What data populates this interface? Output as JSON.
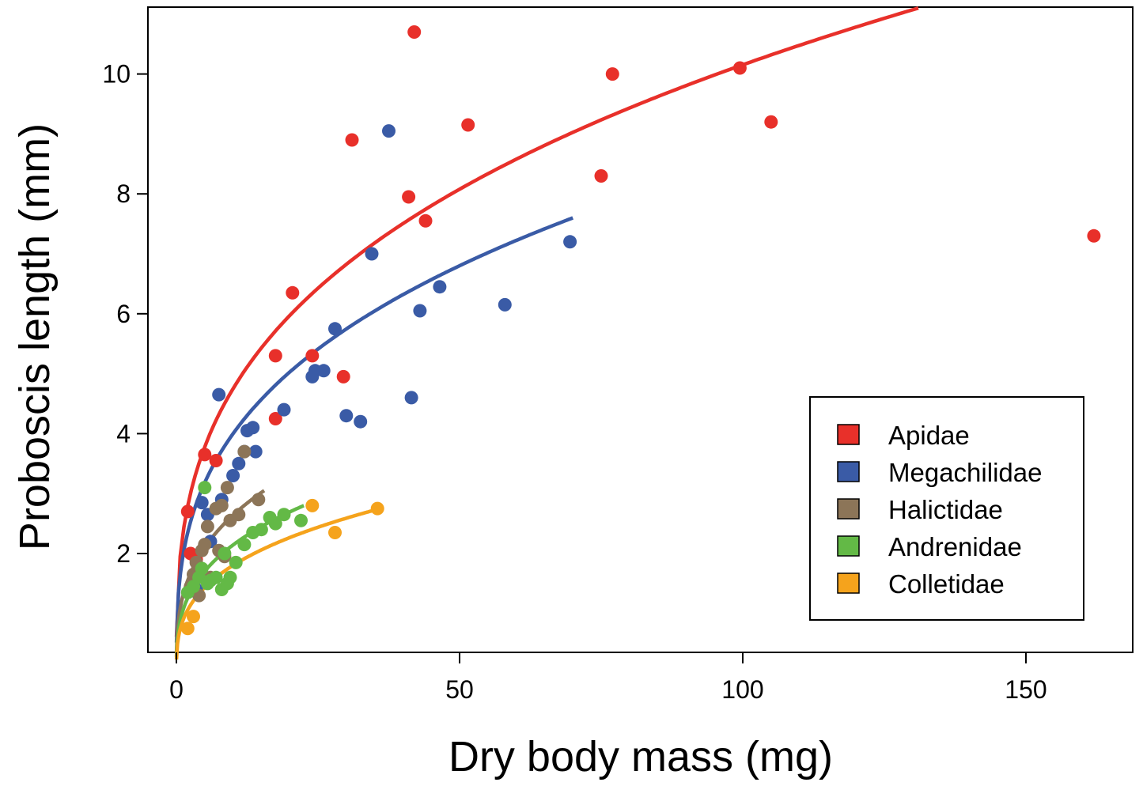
{
  "chart_data": {
    "type": "scatter",
    "title": "",
    "xlabel": "Dry body mass (mg)",
    "ylabel": "Proboscis length (mm)",
    "xlim": [
      -5,
      168
    ],
    "ylim": [
      0.4,
      11.1
    ],
    "xticks": [
      0,
      50,
      100,
      150
    ],
    "yticks": [
      2,
      4,
      6,
      8,
      10
    ],
    "grid": false,
    "legend_position": "bottom-right",
    "fit": "power curve per family",
    "series": [
      {
        "name": "Apidae",
        "color": "#e8302a",
        "fit_x_max": 131,
        "fit_at_max": 11.1,
        "points": [
          [
            2,
            2.7
          ],
          [
            2.5,
            2.0
          ],
          [
            3.5,
            1.9
          ],
          [
            5,
            3.65
          ],
          [
            7,
            3.55
          ],
          [
            17.5,
            5.3
          ],
          [
            17.5,
            4.25
          ],
          [
            20.5,
            6.35
          ],
          [
            24,
            5.3
          ],
          [
            29.5,
            4.95
          ],
          [
            31,
            8.9
          ],
          [
            41,
            7.95
          ],
          [
            42,
            10.7
          ],
          [
            44,
            7.55
          ],
          [
            51.5,
            9.15
          ],
          [
            75,
            8.3
          ],
          [
            77,
            10.0
          ],
          [
            99.5,
            10.1
          ],
          [
            105,
            9.2
          ],
          [
            162,
            7.3
          ]
        ]
      },
      {
        "name": "Megachilidae",
        "color": "#3a5ba6",
        "fit_x_max": 70,
        "fit_at_max": 7.6,
        "points": [
          [
            3.5,
            1.4
          ],
          [
            4.5,
            2.85
          ],
          [
            5.5,
            2.65
          ],
          [
            6,
            2.2
          ],
          [
            7.5,
            4.65
          ],
          [
            8,
            2.9
          ],
          [
            10,
            3.3
          ],
          [
            11,
            3.5
          ],
          [
            12,
            3.7
          ],
          [
            12.5,
            4.05
          ],
          [
            13.5,
            4.1
          ],
          [
            14,
            3.7
          ],
          [
            19,
            4.4
          ],
          [
            24,
            4.95
          ],
          [
            24.5,
            5.05
          ],
          [
            26,
            5.05
          ],
          [
            28,
            5.75
          ],
          [
            30,
            4.3
          ],
          [
            32.5,
            4.2
          ],
          [
            34.5,
            7.0
          ],
          [
            37.5,
            9.05
          ],
          [
            41.5,
            4.6
          ],
          [
            43,
            6.05
          ],
          [
            46.5,
            6.45
          ],
          [
            58,
            6.15
          ],
          [
            69.5,
            7.2
          ]
        ]
      },
      {
        "name": "Halictidae",
        "color": "#8c7558",
        "fit_x_max": 15.5,
        "fit_at_max": 3.05,
        "points": [
          [
            2.5,
            1.45
          ],
          [
            3,
            1.65
          ],
          [
            3.5,
            1.85
          ],
          [
            4,
            1.3
          ],
          [
            4.5,
            2.05
          ],
          [
            5,
            2.15
          ],
          [
            5.5,
            2.45
          ],
          [
            6,
            1.6
          ],
          [
            7,
            2.75
          ],
          [
            7.5,
            2.05
          ],
          [
            8,
            2.8
          ],
          [
            8.5,
            1.95
          ],
          [
            9,
            3.1
          ],
          [
            9.5,
            2.55
          ],
          [
            11,
            2.65
          ],
          [
            12,
            3.7
          ],
          [
            14.5,
            2.9
          ]
        ]
      },
      {
        "name": "Andrenidae",
        "color": "#63b946",
        "fit_x_max": 22.5,
        "fit_at_max": 2.8,
        "points": [
          [
            2,
            1.35
          ],
          [
            3,
            1.45
          ],
          [
            4,
            1.6
          ],
          [
            4.5,
            1.75
          ],
          [
            5,
            3.1
          ],
          [
            5.5,
            1.5
          ],
          [
            6,
            1.55
          ],
          [
            7,
            1.6
          ],
          [
            8,
            1.4
          ],
          [
            8.5,
            2.0
          ],
          [
            9,
            1.5
          ],
          [
            9.5,
            1.6
          ],
          [
            10.5,
            1.85
          ],
          [
            12,
            2.15
          ],
          [
            13.5,
            2.35
          ],
          [
            15,
            2.4
          ],
          [
            16.5,
            2.6
          ],
          [
            17.5,
            2.5
          ],
          [
            19,
            2.65
          ],
          [
            22,
            2.55
          ]
        ]
      },
      {
        "name": "Colletidae",
        "color": "#f5a31c",
        "fit_x_max": 36,
        "fit_at_max": 2.75,
        "points": [
          [
            2,
            0.75
          ],
          [
            3,
            0.95
          ],
          [
            24,
            2.8
          ],
          [
            28,
            2.35
          ],
          [
            35.5,
            2.75
          ]
        ]
      }
    ]
  }
}
